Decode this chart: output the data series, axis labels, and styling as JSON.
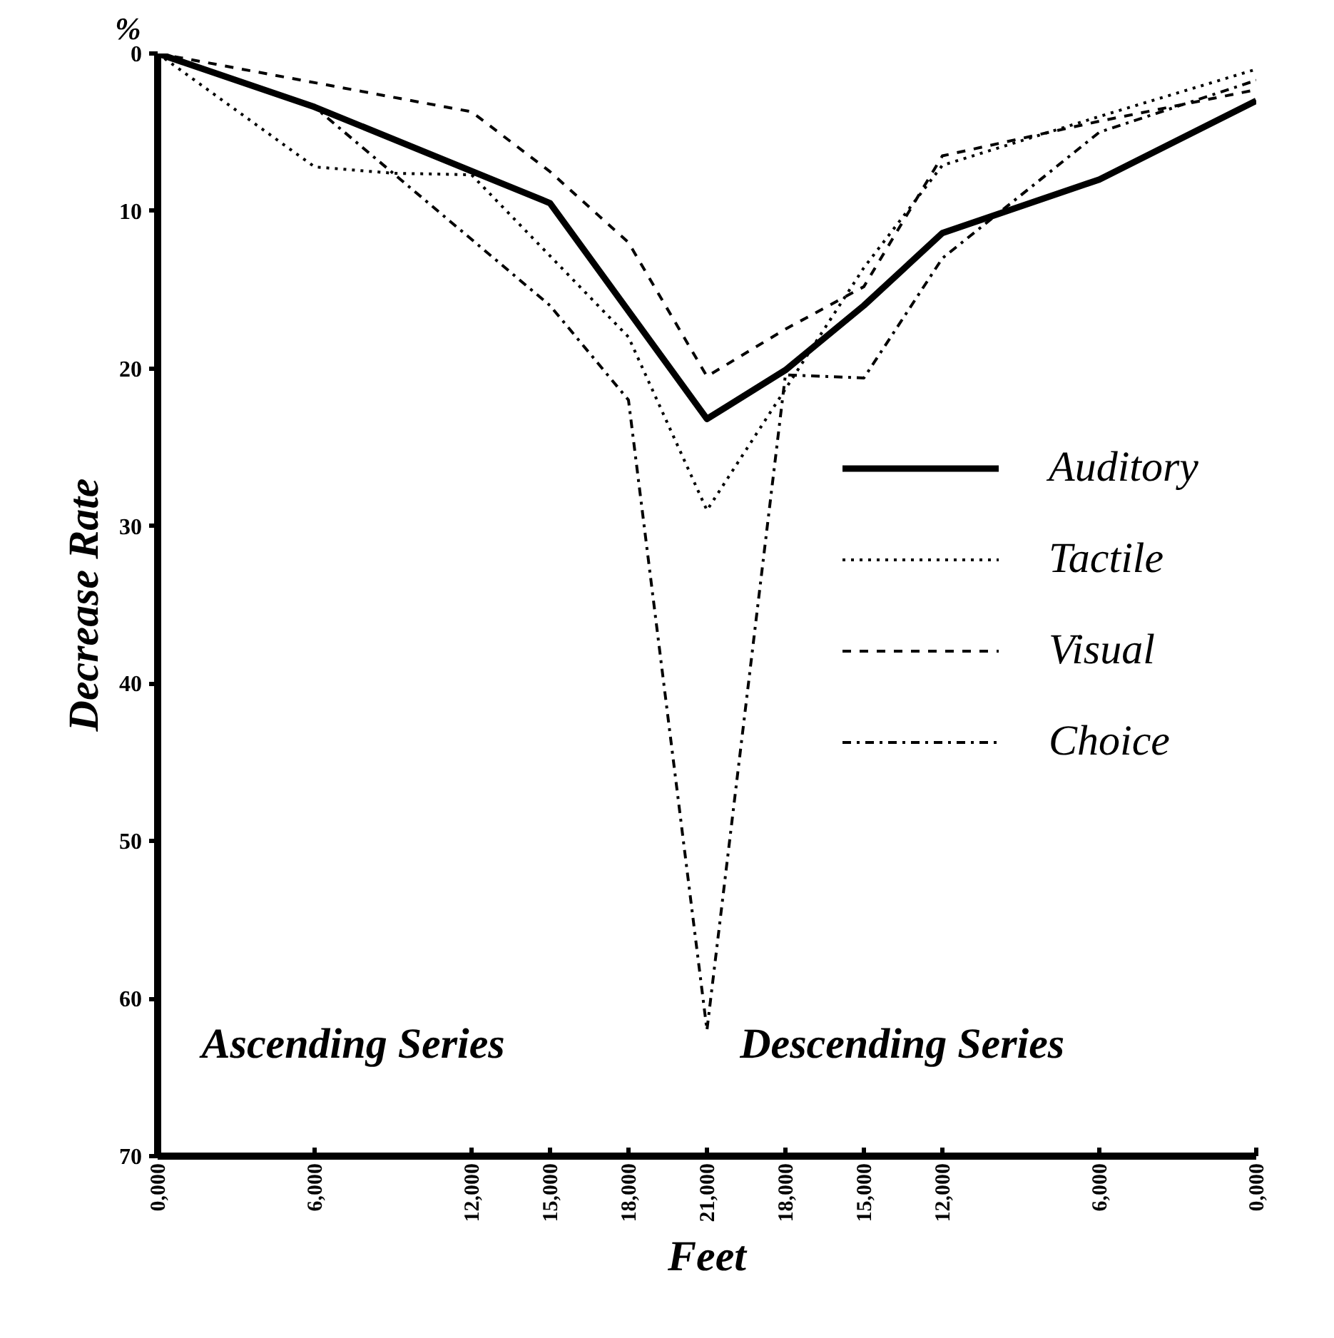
{
  "chart_data": {
    "type": "line",
    "xlabel": "Feet",
    "ylabel": "Decrease Rate",
    "annotations": [
      "%",
      "Ascending Series",
      "Descending Series"
    ],
    "ylim": [
      70,
      0
    ],
    "categories": [
      "0,000",
      null,
      "6,000",
      null,
      "12,000",
      "15,000",
      "18,000",
      "21,000",
      "18,000",
      "15,000",
      "12,000",
      null,
      "6,000",
      null,
      "0,000"
    ],
    "yticks": [
      0,
      10,
      20,
      30,
      40,
      50,
      60,
      70
    ],
    "grid": false,
    "legend": "right",
    "series": [
      {
        "name": "Auditory",
        "color": "#000000",
        "line_style": "solid",
        "values": [
          0,
          null,
          3.4,
          null,
          null,
          9.5,
          null,
          23.2,
          20.1,
          16,
          11.4,
          null,
          8,
          null,
          3
        ]
      },
      {
        "name": "Tactile",
        "color": "#000000",
        "line_style": "dotted",
        "values": [
          0,
          null,
          7.2,
          7.6,
          7.7,
          null,
          18,
          29,
          21.3,
          13.6,
          7.1,
          null,
          4.0,
          null,
          1.0
        ]
      },
      {
        "name": "Visual",
        "color": "#000000",
        "line_style": "dashed",
        "values": [
          0,
          null,
          null,
          null,
          3.7,
          7.5,
          12,
          20.5,
          17.5,
          14.8,
          6.5,
          null,
          4.3,
          null,
          2.3
        ]
      },
      {
        "name": "Choice",
        "color": "#000000",
        "line_style": "dashdot",
        "values": [
          0,
          null,
          3.4,
          null,
          null,
          16,
          22,
          62,
          20.4,
          20.6,
          13,
          null,
          5,
          null,
          1.7
        ]
      }
    ]
  }
}
